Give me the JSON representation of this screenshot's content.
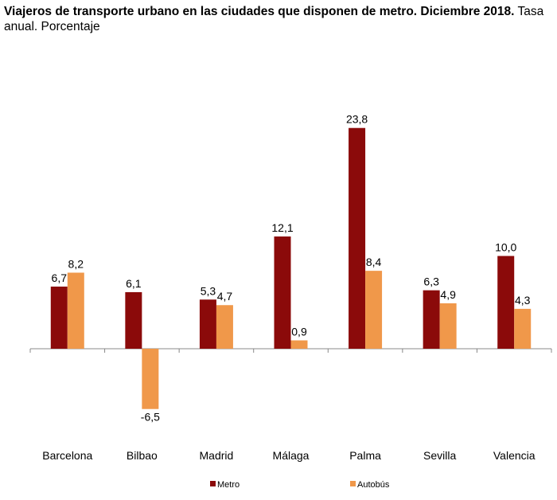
{
  "chart_data": {
    "type": "bar",
    "title_bold": "Viajeros de transporte urbano en las ciudades que disponen de metro. Diciembre 2018.",
    "subtitle": "Tasa anual. Porcentaje",
    "xlabel": "",
    "ylabel": "",
    "ylim": [
      -8,
      25
    ],
    "grid": false,
    "legend_position": "bottom",
    "categories": [
      "Barcelona",
      "Bilbao",
      "Madrid",
      "Málaga",
      "Palma",
      "Sevilla",
      "Valencia"
    ],
    "series": [
      {
        "name": "Metro",
        "color": "#8B0A0A",
        "values": [
          6.7,
          6.1,
          5.3,
          12.1,
          23.8,
          6.3,
          10.0
        ],
        "labels": [
          "6,7",
          "6,1",
          "5,3",
          "12,1",
          "23,8",
          "6,3",
          "10,0"
        ]
      },
      {
        "name": "Autobús",
        "color": "#F0984A",
        "values": [
          8.2,
          -6.5,
          4.7,
          0.9,
          8.4,
          4.9,
          4.3
        ],
        "labels": [
          "8,2",
          "-6,5",
          "4,7",
          "0,9",
          "8,4",
          "4,9",
          "4,3"
        ]
      }
    ]
  }
}
